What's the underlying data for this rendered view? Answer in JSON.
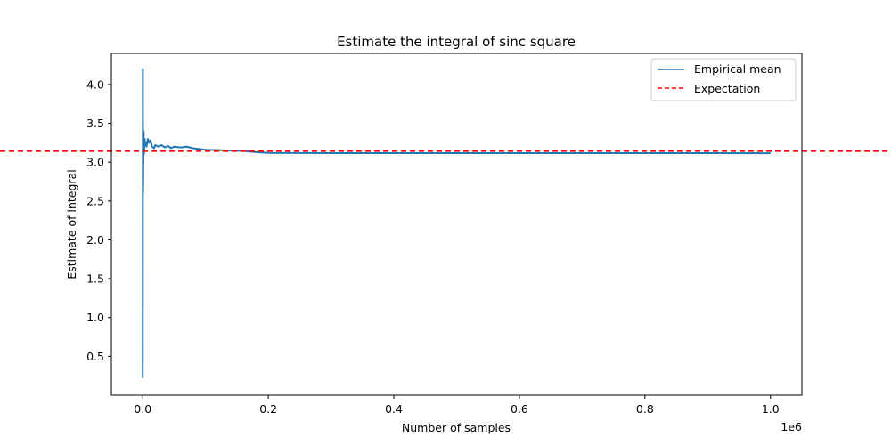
{
  "chart_data": {
    "type": "line",
    "title": "Estimate the integral of sinc square",
    "xlabel": "Number of samples",
    "ylabel": "Estimate of integral",
    "x_offset_label": "1e6",
    "xlim": [
      -0.05,
      1.05
    ],
    "ylim": [
      0.0,
      4.4
    ],
    "xticks": [
      0.0,
      0.2,
      0.4,
      0.6,
      0.8,
      1.0
    ],
    "xtick_labels": [
      "0.0",
      "0.2",
      "0.4",
      "0.6",
      "0.8",
      "1.0"
    ],
    "yticks": [
      0.5,
      1.0,
      1.5,
      2.0,
      2.5,
      3.0,
      3.5,
      4.0
    ],
    "ytick_labels": [
      "0.5",
      "1.0",
      "1.5",
      "2.0",
      "2.5",
      "3.0",
      "3.5",
      "4.0"
    ],
    "grid": false,
    "legend_position": "top-right",
    "series": [
      {
        "name": "Empirical mean",
        "color": "#1f77b4",
        "style": "solid",
        "x": [
          0.0,
          0.0002,
          0.0005,
          0.001,
          0.0015,
          0.002,
          0.003,
          0.004,
          0.005,
          0.006,
          0.008,
          0.01,
          0.012,
          0.015,
          0.018,
          0.02,
          0.025,
          0.03,
          0.035,
          0.04,
          0.045,
          0.05,
          0.06,
          0.07,
          0.08,
          0.09,
          0.1,
          0.12,
          0.14,
          0.16,
          0.18,
          0.2,
          0.25,
          0.3,
          0.4,
          0.5,
          0.6,
          0.7,
          0.8,
          0.9,
          1.0
        ],
        "y": [
          0.22,
          4.2,
          2.6,
          3.05,
          3.4,
          3.1,
          3.3,
          3.22,
          3.25,
          3.2,
          3.3,
          3.25,
          3.28,
          3.2,
          3.18,
          3.22,
          3.2,
          3.22,
          3.19,
          3.21,
          3.18,
          3.2,
          3.19,
          3.2,
          3.18,
          3.17,
          3.16,
          3.155,
          3.15,
          3.145,
          3.13,
          3.12,
          3.118,
          3.117,
          3.117,
          3.116,
          3.116,
          3.117,
          3.117,
          3.116,
          3.115
        ]
      },
      {
        "name": "Expectation",
        "color": "#ff0000",
        "style": "dashed",
        "y_constant": 3.1416
      }
    ]
  }
}
